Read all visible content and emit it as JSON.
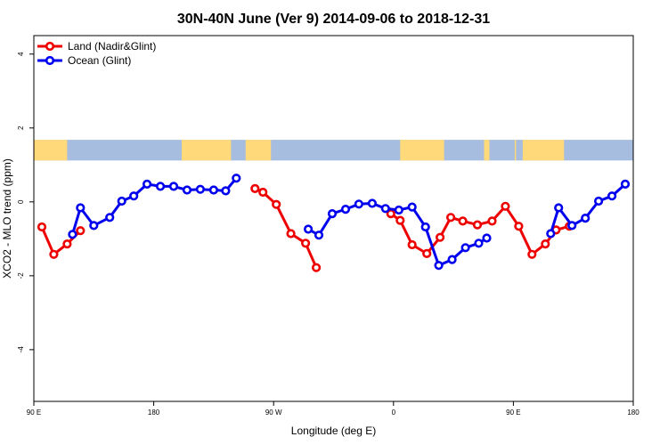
{
  "chart_data": {
    "type": "line",
    "title": "30N-40N June (Ver 9)   2014-09-06 to 2018-12-31",
    "xlabel": "Longitude (deg E)",
    "ylabel": "XCO2 - MLO trend (ppm)",
    "xlim": [
      90,
      540
    ],
    "ylim": [
      -5.4,
      4.5
    ],
    "x_ticks": [
      {
        "value": 90,
        "label": "90 E"
      },
      {
        "value": 180,
        "label": "180"
      },
      {
        "value": 270,
        "label": "90 W"
      },
      {
        "value": 360,
        "label": "0"
      },
      {
        "value": 450,
        "label": "90 E"
      },
      {
        "value": 540,
        "label": "180"
      }
    ],
    "y_ticks": [
      {
        "value": -4,
        "label": "-4"
      },
      {
        "value": -2,
        "label": "-2"
      },
      {
        "value": 0,
        "label": "0"
      },
      {
        "value": 2,
        "label": "2"
      },
      {
        "value": 4,
        "label": "4"
      }
    ],
    "legend_position": "top-left",
    "series": [
      {
        "name": "Land (Nadir&Glint)",
        "color": "#ee0000",
        "segments": [
          [
            [
              96,
              -0.68
            ],
            [
              105,
              -1.42
            ],
            [
              115,
              -1.14
            ],
            [
              125,
              -0.78
            ]
          ],
          [
            [
              256,
              0.36
            ],
            [
              262,
              0.26
            ],
            [
              272,
              -0.07
            ],
            [
              283,
              -0.86
            ],
            [
              294,
              -1.12
            ],
            [
              302,
              -1.78
            ]
          ],
          [
            [
              358,
              -0.32
            ],
            [
              365,
              -0.5
            ],
            [
              374,
              -1.16
            ],
            [
              385,
              -1.4
            ],
            [
              395,
              -0.96
            ],
            [
              403,
              -0.42
            ],
            [
              412,
              -0.52
            ],
            [
              423,
              -0.62
            ],
            [
              434,
              -0.52
            ],
            [
              444,
              -0.12
            ],
            [
              454,
              -0.66
            ],
            [
              464,
              -1.42
            ],
            [
              474,
              -1.14
            ],
            [
              482,
              -0.76
            ],
            [
              492,
              -0.66
            ]
          ]
        ]
      },
      {
        "name": "Ocean (Glint)",
        "color": "#0000ee",
        "segments": [
          [
            [
              119,
              -0.88
            ],
            [
              125,
              -0.16
            ],
            [
              135,
              -0.64
            ],
            [
              147,
              -0.42
            ],
            [
              156,
              0.02
            ],
            [
              165,
              0.16
            ],
            [
              175,
              0.48
            ],
            [
              185,
              0.42
            ],
            [
              195,
              0.42
            ],
            [
              205,
              0.32
            ],
            [
              215,
              0.34
            ],
            [
              225,
              0.32
            ],
            [
              234,
              0.3
            ],
            [
              242,
              0.64
            ]
          ],
          [
            [
              296,
              -0.74
            ],
            [
              304,
              -0.9
            ],
            [
              314,
              -0.32
            ],
            [
              324,
              -0.2
            ],
            [
              334,
              -0.06
            ],
            [
              344,
              -0.04
            ],
            [
              354,
              -0.18
            ],
            [
              364,
              -0.22
            ],
            [
              374,
              -0.14
            ],
            [
              384,
              -0.68
            ],
            [
              394,
              -1.72
            ],
            [
              404,
              -1.56
            ],
            [
              414,
              -1.24
            ],
            [
              424,
              -1.12
            ],
            [
              430,
              -0.98
            ]
          ],
          [
            [
              478,
              -0.86
            ],
            [
              484,
              -0.16
            ],
            [
              494,
              -0.64
            ],
            [
              504,
              -0.44
            ],
            [
              514,
              0.02
            ],
            [
              524,
              0.16
            ],
            [
              534,
              0.48
            ]
          ]
        ]
      }
    ],
    "map_strip": {
      "y_range": [
        1.12,
        1.68
      ],
      "ocean_color": "#a6bde0",
      "land_color": "#ffd97a",
      "land_spans": [
        [
          90,
          115
        ],
        [
          201,
          238
        ],
        [
          249,
          268
        ],
        [
          365,
          398
        ],
        [
          428,
          432
        ],
        [
          451,
          452
        ],
        [
          457,
          488
        ]
      ]
    }
  }
}
